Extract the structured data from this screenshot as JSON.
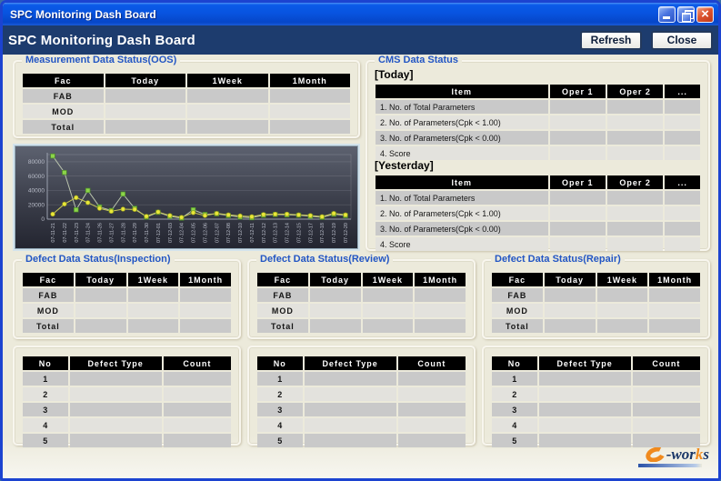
{
  "window": {
    "title": "SPC Monitoring Dash Board"
  },
  "header": {
    "title": "SPC Monitoring Dash Board",
    "refresh_label": "Refresh",
    "close_label": "Close"
  },
  "colors": {
    "titlebar_blue": "#0854e0",
    "header_navy": "#1d3c6e",
    "content_bg": "#eceadb",
    "section_title_blue": "#2356c4",
    "table_header_bg": "#000000",
    "row_dark": "#c9c9c9",
    "row_light": "#e3e2dd",
    "series_green": "#8cd44a",
    "series_yellow": "#e8e838",
    "logo_orange": "#f08a1e"
  },
  "fac_table": {
    "headers": [
      "Fac",
      "Today",
      "1Week",
      "1Month"
    ],
    "rows": [
      "FAB",
      "MOD",
      "Total"
    ]
  },
  "sections": {
    "measurement": {
      "title": "Measurement Data Status(OOS)"
    },
    "cms": {
      "title": "CMS Data Status",
      "today_label": "[Today]",
      "yesterday_label": "[Yesterday]",
      "headers": [
        "Item",
        "Oper 1",
        "Oper 2",
        "..."
      ],
      "items": [
        "1. No. of Total Parameters",
        "2. No. of Parameters(Cpk < 1.00)",
        "3. No. of Parameters(Cpk < 0.00)",
        "4. Score"
      ]
    },
    "inspection": {
      "title": "Defect Data Status(Inspection)"
    },
    "review": {
      "title": "Defect Data Status(Review)"
    },
    "repair": {
      "title": "Defect Data Status(Repair)"
    }
  },
  "defect_list": {
    "headers": [
      "No",
      "Defect Type",
      "Count"
    ],
    "rows": [
      "1",
      "2",
      "3",
      "4",
      "5"
    ]
  },
  "logo": {
    "text_wor": "-wor",
    "text_k": "k",
    "text_s": "s"
  },
  "chart_data": {
    "type": "line",
    "title": "",
    "xlabel": "",
    "ylabel": "",
    "ylim": [
      0,
      90000
    ],
    "yticks": [
      0,
      20000,
      40000,
      60000,
      80000
    ],
    "grid": true,
    "legend": "none",
    "background": "dark-gradient",
    "x": [
      "07-11-21",
      "07-11-22",
      "07-11-23",
      "07-11-24",
      "07-11-26",
      "07-11-27",
      "07-11-28",
      "07-11-29",
      "07-11-30",
      "07-12-01",
      "07-12-03",
      "07-12-04",
      "07-12-05",
      "07-12-06",
      "07-12-07",
      "07-12-08",
      "07-12-10",
      "07-12-11",
      "07-12-12",
      "07-12-13",
      "07-12-14",
      "07-12-15",
      "07-12-17",
      "07-12-18",
      "07-12-19",
      "07-12-20"
    ],
    "series": [
      {
        "name": "green-squares",
        "marker": "square",
        "color": "#8cd44a",
        "edge_color": "#4a8a28",
        "line_color": "#b8c2ac",
        "values": [
          88000,
          65000,
          13000,
          40000,
          17000,
          12000,
          35000,
          15000,
          3000,
          9500,
          4000,
          1500,
          13000,
          6500,
          7500,
          5000,
          3000,
          2000,
          5500,
          6500,
          6000,
          5500,
          4000,
          2500,
          7000,
          5000
        ]
      },
      {
        "name": "yellow-circles",
        "marker": "circle",
        "color": "#e8e838",
        "edge_color": "#9a9a20",
        "line_color": "#c8c858",
        "values": [
          7000,
          21000,
          30000,
          23000,
          15000,
          11000,
          14000,
          13500,
          4000,
          10000,
          5000,
          2500,
          9000,
          5000,
          8000,
          6000,
          4500,
          3500,
          6500,
          7000,
          7000,
          6000,
          5000,
          3500,
          8000,
          6000
        ]
      }
    ]
  }
}
